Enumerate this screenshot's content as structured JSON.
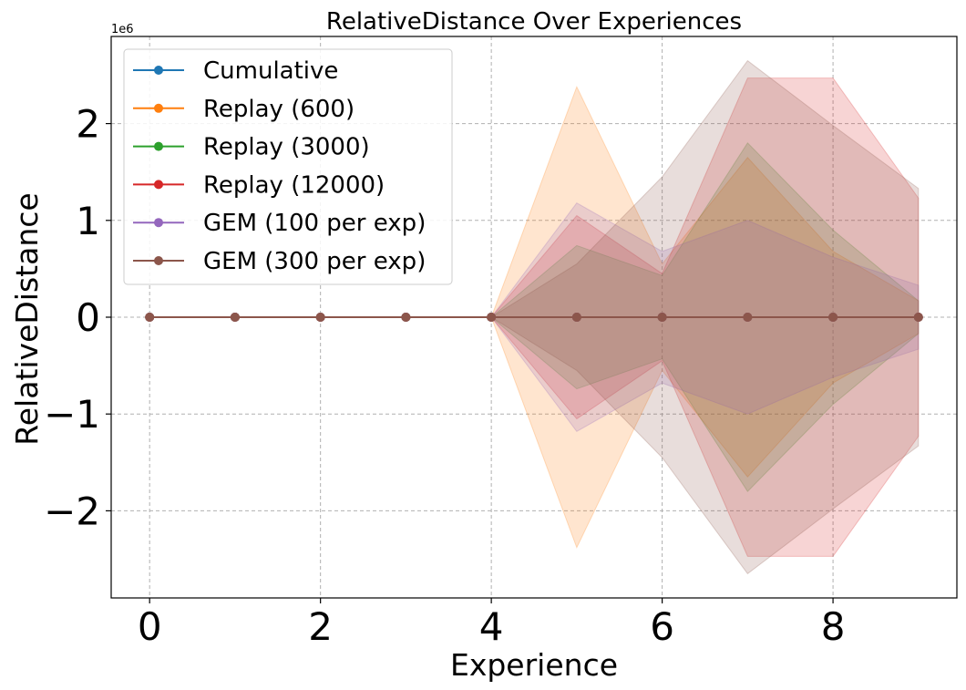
{
  "chart_data": {
    "type": "line",
    "title": "RelativeDistance Over Experiences",
    "xlabel": "Experience",
    "ylabel": "RelativeDistance",
    "y_scale_label": "1e6",
    "x": [
      0,
      1,
      2,
      3,
      4,
      5,
      6,
      7,
      8,
      9
    ],
    "xlim": [
      -0.45,
      9.45
    ],
    "ylim": [
      -2.9,
      2.9
    ],
    "x_ticks": [
      0,
      2,
      4,
      6,
      8
    ],
    "y_ticks": [
      -2,
      -1,
      0,
      1,
      2
    ],
    "x_tick_labels": [
      "0",
      "2",
      "4",
      "6",
      "8"
    ],
    "y_tick_labels": [
      "−2",
      "−1",
      "0",
      "1",
      "2"
    ],
    "grid": true,
    "legend_position": "top-left",
    "series": [
      {
        "name": "Cumulative",
        "color": "#1f77b4",
        "mean": [
          0,
          0,
          0,
          0,
          0,
          0,
          0,
          0,
          0,
          0
        ],
        "std": [
          0,
          0,
          0,
          0,
          0,
          0,
          0,
          0,
          0,
          0
        ]
      },
      {
        "name": "Replay (600)",
        "color": "#ff7f0e",
        "mean": [
          0,
          0,
          0,
          0,
          0,
          0,
          0,
          0,
          0,
          0
        ],
        "std": [
          0,
          0,
          0,
          0,
          0,
          2.38,
          0.55,
          1.65,
          0.68,
          0.17
        ]
      },
      {
        "name": "Replay (3000)",
        "color": "#2ca02c",
        "mean": [
          0,
          0,
          0,
          0,
          0,
          0,
          0,
          0,
          0,
          0
        ],
        "std": [
          0,
          0,
          0,
          0,
          0,
          0.74,
          0.43,
          1.8,
          0.9,
          0.17
        ]
      },
      {
        "name": "Replay (12000)",
        "color": "#d62728",
        "mean": [
          0,
          0,
          0,
          0,
          0,
          0,
          0,
          0,
          0,
          0
        ],
        "std": [
          0,
          0,
          0,
          0,
          0,
          1.05,
          0.45,
          2.47,
          2.47,
          1.23
        ]
      },
      {
        "name": "GEM (100 per exp)",
        "color": "#9467bd",
        "mean": [
          0,
          0,
          0,
          0,
          0,
          0,
          0,
          0,
          0,
          0
        ],
        "std": [
          0,
          0,
          0,
          0,
          0,
          1.18,
          0.68,
          1.0,
          0.62,
          0.33
        ]
      },
      {
        "name": "GEM (300 per exp)",
        "color": "#8c564b",
        "mean": [
          0,
          0,
          0,
          0,
          0,
          0,
          0,
          0,
          0,
          0
        ],
        "std": [
          0,
          0,
          0,
          0,
          0,
          0.55,
          1.45,
          2.65,
          1.98,
          1.33
        ]
      }
    ]
  }
}
